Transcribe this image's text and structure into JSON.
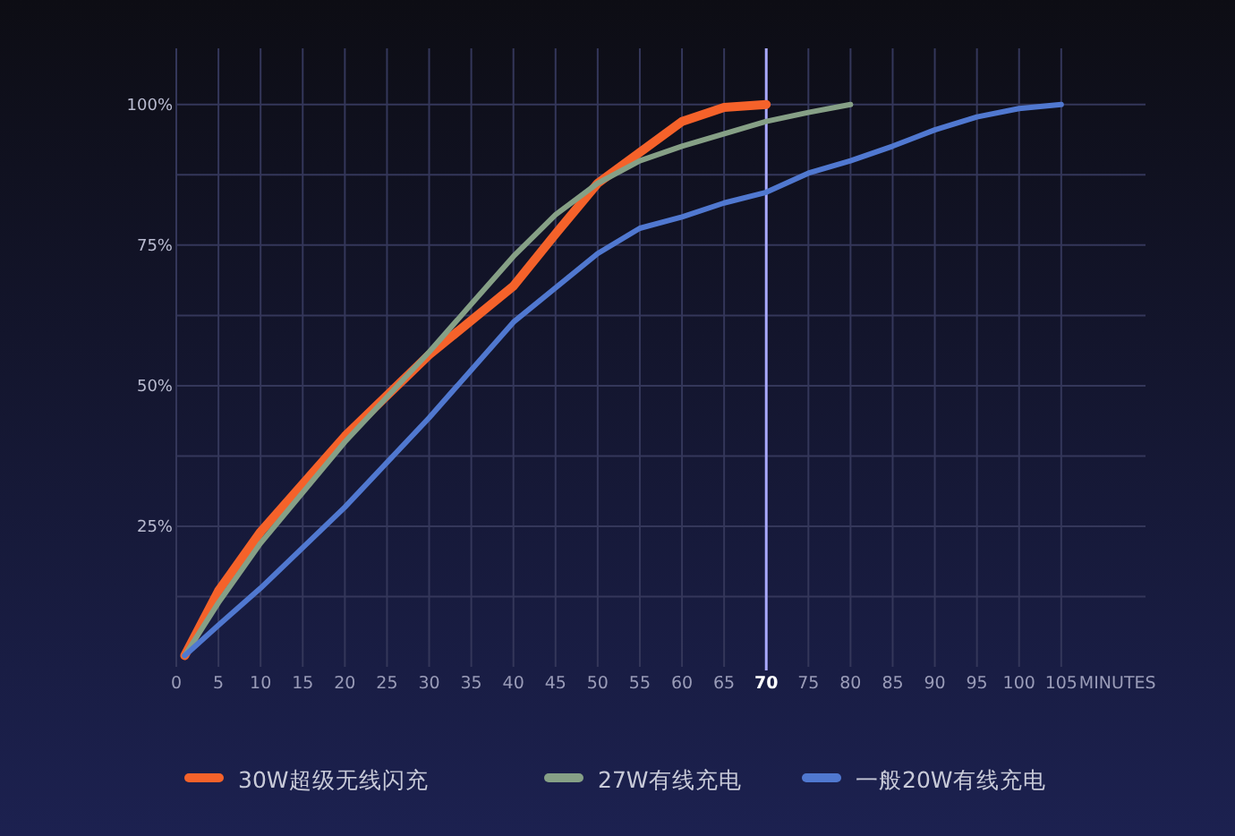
{
  "chart_data": {
    "type": "line",
    "xlabel": "MINUTES",
    "xlim": [
      0,
      115
    ],
    "ylim": [
      0,
      110
    ],
    "xticks": [
      0,
      5,
      10,
      15,
      20,
      25,
      30,
      35,
      40,
      45,
      50,
      55,
      60,
      65,
      70,
      75,
      80,
      85,
      90,
      95,
      100,
      105
    ],
    "yticks": [
      {
        "value": 12.5,
        "label": null
      },
      {
        "value": 25,
        "label": "25%"
      },
      {
        "value": 37.5,
        "label": null
      },
      {
        "value": 50,
        "label": "50%"
      },
      {
        "value": 62.5,
        "label": null
      },
      {
        "value": 75,
        "label": "75%"
      },
      {
        "value": 87.5,
        "label": null
      },
      {
        "value": 100,
        "label": "100%"
      }
    ],
    "grid": true,
    "legend": "bottom",
    "marker": "none",
    "line_style": "solid",
    "ref_lines": [
      {
        "axis": "x",
        "value": 70,
        "color": "#a9a9ff"
      }
    ],
    "series": [
      {
        "name": "30W超级无线闪充",
        "color": "#f5622a",
        "x": [
          1,
          5,
          10,
          20,
          30,
          40,
          45,
          50,
          55,
          60,
          65,
          70
        ],
        "values": [
          2,
          13.5,
          24,
          41,
          55.5,
          67.7,
          77,
          86,
          91.5,
          97,
          99.5,
          100
        ]
      },
      {
        "name": "27W有线充电",
        "color": "#86a086",
        "x": [
          1,
          5,
          10,
          20,
          30,
          35,
          40,
          45,
          50,
          55,
          60,
          70,
          75,
          80
        ],
        "values": [
          2,
          11.4,
          22,
          40,
          56,
          64.5,
          73,
          80.4,
          86,
          90,
          92.6,
          97,
          98.6,
          100
        ]
      },
      {
        "name": "一般20W有线充电",
        "color": "#5078d0",
        "x": [
          1,
          5,
          10,
          20,
          30,
          40,
          50,
          55,
          60,
          65,
          70,
          75,
          80,
          85,
          90,
          95,
          100,
          105
        ],
        "values": [
          2,
          7.4,
          14,
          28.4,
          44.3,
          61.3,
          73.5,
          78,
          80,
          82.5,
          84.4,
          87.8,
          90,
          92.6,
          95.5,
          97.8,
          99.3,
          100
        ]
      }
    ]
  }
}
